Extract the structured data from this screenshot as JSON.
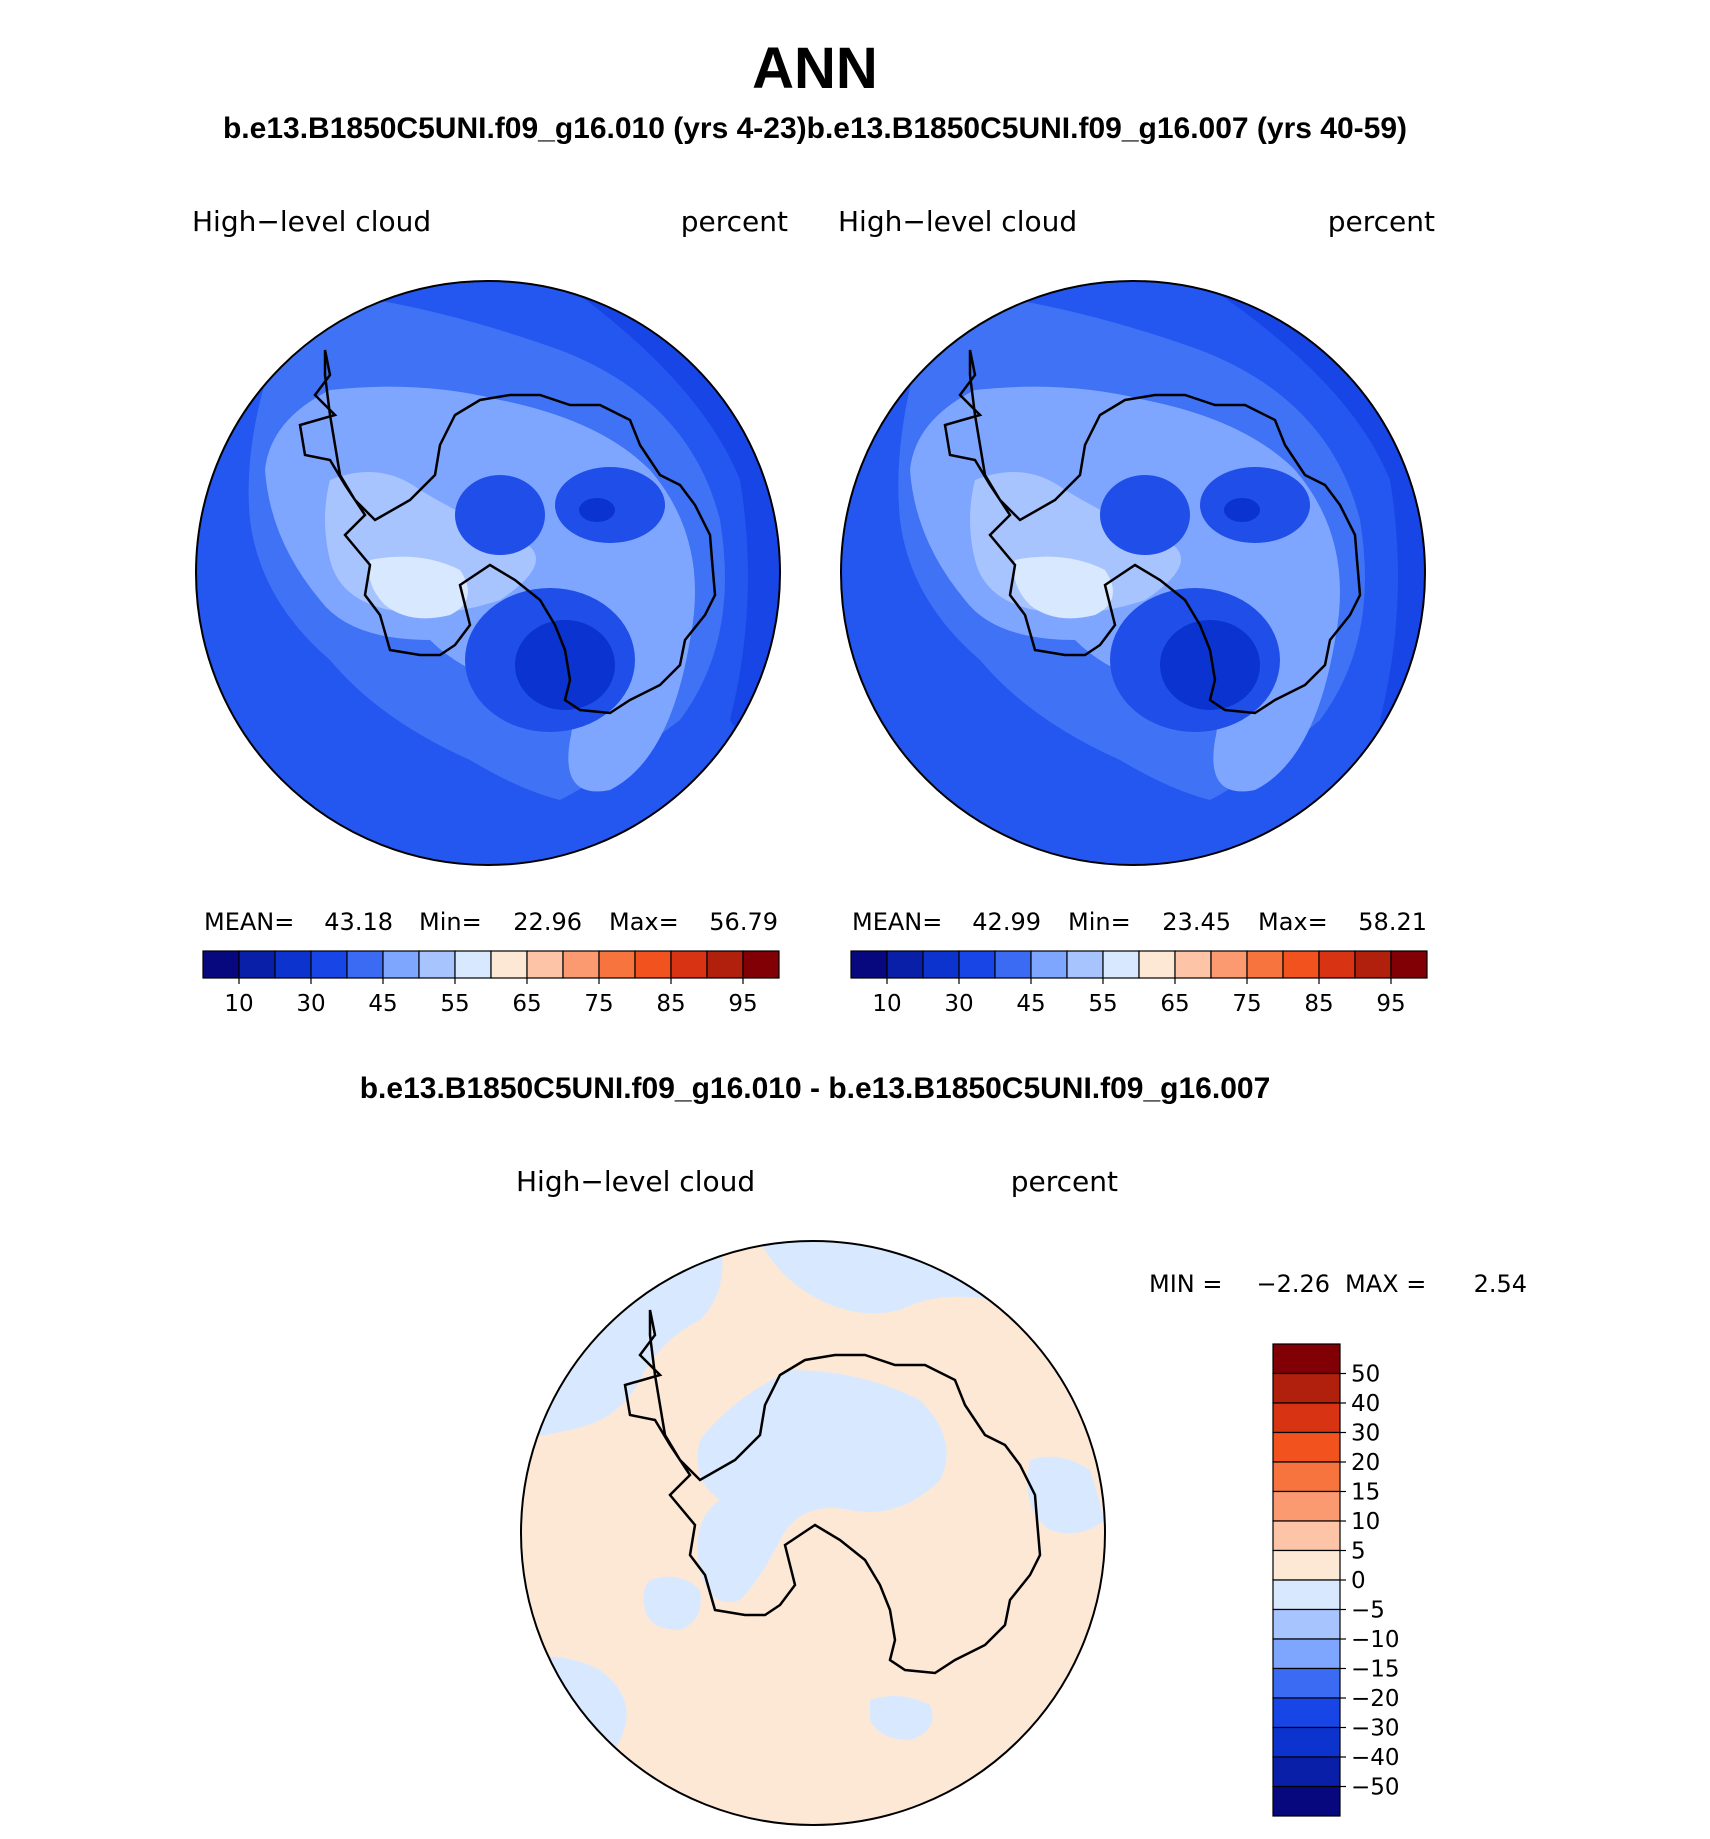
{
  "title": "ANN",
  "subtitle": "b.e13.B1850C5UNI.f09_g16.010 (yrs 4-23)b.e13.B1850C5UNI.f09_g16.007 (yrs 40-59)",
  "diff_title": "b.e13.B1850C5UNI.f09_g16.010 - b.e13.B1850C5UNI.f09_g16.007",
  "colors": {
    "ocean_low": "#2456f0",
    "ocean_mid": "#3f72f5",
    "ring": "#1846e6",
    "light1": "#7fa6ff",
    "light2": "#a8c4ff",
    "light3": "#d8e9ff",
    "dark1": "#1f4ee8",
    "dark2": "#0a33cf",
    "diff_pos": "#fde8d6",
    "diff_neg": "#d8e9ff",
    "coast": "#000000"
  },
  "panels": [
    {
      "id": "left",
      "variable": "High−level cloud",
      "units": "percent",
      "stats": {
        "mean_label": "MEAN=",
        "mean": "43.18",
        "min_label": "Min=",
        "min": "22.96",
        "max_label": "Max=",
        "max": "56.79"
      }
    },
    {
      "id": "right",
      "variable": "High−level cloud",
      "units": "percent",
      "stats": {
        "mean_label": "MEAN=",
        "mean": "42.99",
        "min_label": "Min=",
        "min": "23.45",
        "max_label": "Max=",
        "max": "58.21"
      }
    }
  ],
  "diff_panel": {
    "variable": "High−level cloud",
    "units": "percent",
    "min_label": "MIN =",
    "min": "−2.26",
    "max_label": "MAX =",
    "max": "2.54"
  },
  "colorbar": {
    "colors": [
      "#08087e",
      "#0a1fa8",
      "#0d33cf",
      "#1846e6",
      "#3b6bf2",
      "#7fa6ff",
      "#a8c4ff",
      "#d8e9ff",
      "#fde8d6",
      "#fdc4a8",
      "#fb9a71",
      "#f7743f",
      "#f2521d",
      "#d83312",
      "#b0200c",
      "#800006"
    ],
    "ticks": [
      "10",
      "30",
      "45",
      "55",
      "65",
      "75",
      "85",
      "95"
    ]
  },
  "diff_colorbar": {
    "colors": [
      "#800006",
      "#b0200c",
      "#d83312",
      "#f2521d",
      "#f7743f",
      "#fb9a71",
      "#fdc4a8",
      "#fde8d6",
      "#d8e9ff",
      "#a8c4ff",
      "#7fa6ff",
      "#3b6bf2",
      "#1846e6",
      "#0d33cf",
      "#0a1fa8",
      "#08087e"
    ],
    "ticks": [
      "50",
      "40",
      "30",
      "20",
      "15",
      "10",
      "5",
      "0",
      "−5",
      "−10",
      "−15",
      "−20",
      "−30",
      "−40",
      "−50"
    ]
  }
}
